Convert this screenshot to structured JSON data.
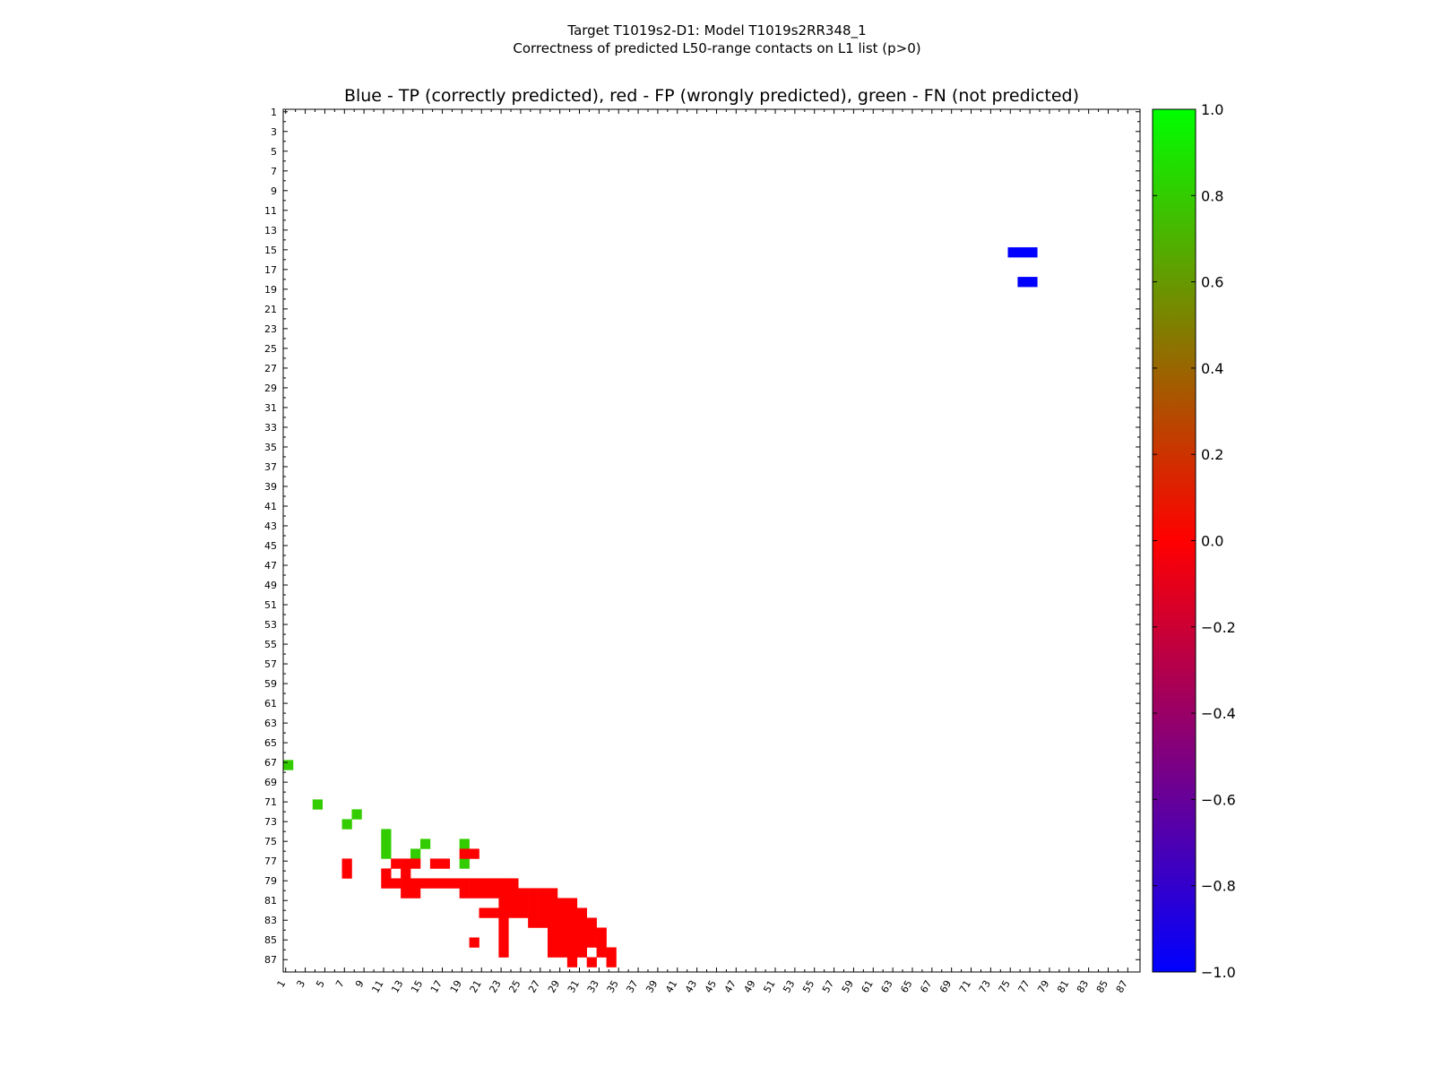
{
  "chart_data": {
    "type": "heatmap",
    "suptitle": [
      "Target T1019s2-D1: Model T1019s2RR348_1",
      "Correctness of predicted L50-range contacts on L1 list (p>0)"
    ],
    "title": "Blue - TP (correctly predicted), red - FP (wrongly predicted), green - FN (not predicted)",
    "n_residues": 87,
    "x_tick_labels": [
      "1",
      "3",
      "5",
      "7",
      "9",
      "11",
      "13",
      "15",
      "17",
      "19",
      "21",
      "23",
      "25",
      "27",
      "29",
      "31",
      "33",
      "35",
      "37",
      "39",
      "41",
      "43",
      "45",
      "47",
      "49",
      "51",
      "53",
      "55",
      "57",
      "59",
      "61",
      "63",
      "65",
      "67",
      "69",
      "71",
      "73",
      "75",
      "77",
      "79",
      "81",
      "83",
      "85",
      "87"
    ],
    "y_tick_labels": [
      "1",
      "3",
      "5",
      "7",
      "9",
      "11",
      "13",
      "15",
      "17",
      "19",
      "21",
      "23",
      "25",
      "27",
      "29",
      "31",
      "33",
      "35",
      "37",
      "39",
      "41",
      "43",
      "45",
      "47",
      "49",
      "51",
      "53",
      "55",
      "57",
      "59",
      "61",
      "63",
      "65",
      "67",
      "69",
      "71",
      "73",
      "75",
      "77",
      "79",
      "81",
      "83",
      "85",
      "87"
    ],
    "colorbar": {
      "range": [
        -1.0,
        1.0
      ],
      "tick_labels": [
        "1.0",
        "0.8",
        "0.6",
        "0.4",
        "0.2",
        "0.0",
        "−0.2",
        "−0.4",
        "−0.6",
        "−0.8",
        "−1.0"
      ],
      "colors": [
        "#0000ff",
        "#ff0000",
        "#00ff00"
      ]
    },
    "legend": {
      "tp": "Blue - TP",
      "fp": "red - FP",
      "fn": "green - FN"
    },
    "cell_colors": {
      "tp": "#0000ff",
      "fp": "#ff0000",
      "fn": "#33cc00"
    },
    "cells": {
      "tp": [
        [
          15,
          75
        ],
        [
          15,
          76
        ],
        [
          15,
          77
        ],
        [
          18,
          76
        ],
        [
          18,
          77
        ]
      ],
      "fn": [
        [
          67,
          1
        ],
        [
          71,
          4
        ],
        [
          72,
          8
        ],
        [
          73,
          7
        ],
        [
          74,
          11
        ],
        [
          75,
          11
        ],
        [
          76,
          11
        ],
        [
          75,
          15
        ],
        [
          76,
          14
        ],
        [
          75,
          19
        ],
        [
          77,
          19
        ]
      ],
      "fp": [
        [
          77,
          7
        ],
        [
          78,
          7
        ],
        [
          77,
          12
        ],
        [
          77,
          13
        ],
        [
          77,
          14
        ],
        [
          78,
          11
        ],
        [
          79,
          11
        ],
        [
          79,
          12
        ],
        [
          78,
          13
        ],
        [
          77,
          16
        ],
        [
          77,
          17
        ],
        [
          76,
          19
        ],
        [
          76,
          20
        ],
        [
          79,
          15
        ],
        [
          79,
          16
        ],
        [
          79,
          17
        ],
        [
          79,
          18
        ],
        [
          79,
          19
        ],
        [
          79,
          20
        ],
        [
          79,
          21
        ],
        [
          79,
          22
        ],
        [
          79,
          23
        ],
        [
          79,
          24
        ],
        [
          80,
          19
        ],
        [
          80,
          20
        ],
        [
          80,
          21
        ],
        [
          80,
          22
        ],
        [
          80,
          23
        ],
        [
          80,
          24
        ],
        [
          80,
          25
        ],
        [
          80,
          26
        ],
        [
          80,
          27
        ],
        [
          80,
          28
        ],
        [
          81,
          23
        ],
        [
          81,
          24
        ],
        [
          81,
          25
        ],
        [
          81,
          26
        ],
        [
          81,
          27
        ],
        [
          81,
          28
        ],
        [
          81,
          29
        ],
        [
          81,
          30
        ],
        [
          82,
          21
        ],
        [
          82,
          22
        ],
        [
          82,
          23
        ],
        [
          82,
          24
        ],
        [
          82,
          25
        ],
        [
          82,
          26
        ],
        [
          82,
          27
        ],
        [
          82,
          28
        ],
        [
          82,
          29
        ],
        [
          82,
          30
        ],
        [
          82,
          31
        ],
        [
          83,
          23
        ],
        [
          83,
          26
        ],
        [
          83,
          27
        ],
        [
          83,
          28
        ],
        [
          83,
          29
        ],
        [
          83,
          30
        ],
        [
          83,
          31
        ],
        [
          83,
          32
        ],
        [
          84,
          23
        ],
        [
          84,
          28
        ],
        [
          84,
          29
        ],
        [
          84,
          30
        ],
        [
          84,
          31
        ],
        [
          84,
          32
        ],
        [
          84,
          33
        ],
        [
          85,
          23
        ],
        [
          85,
          28
        ],
        [
          85,
          29
        ],
        [
          85,
          30
        ],
        [
          85,
          31
        ],
        [
          85,
          32
        ],
        [
          85,
          33
        ],
        [
          86,
          23
        ],
        [
          86,
          28
        ],
        [
          86,
          29
        ],
        [
          86,
          30
        ],
        [
          86,
          31
        ],
        [
          86,
          33
        ],
        [
          87,
          30
        ],
        [
          87,
          32
        ],
        [
          87,
          34
        ],
        [
          85,
          20
        ],
        [
          86,
          34
        ],
        [
          79,
          13
        ],
        [
          80,
          13
        ],
        [
          79,
          14
        ],
        [
          80,
          14
        ]
      ]
    }
  }
}
